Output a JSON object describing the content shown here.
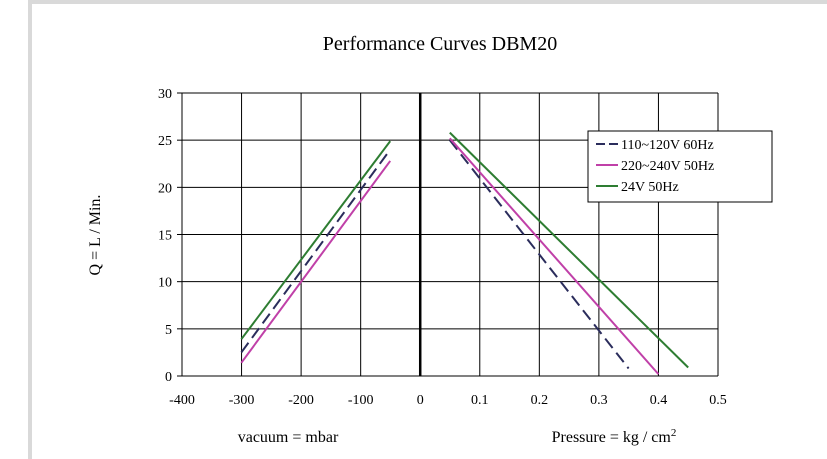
{
  "chart_data": {
    "type": "line",
    "title": "Performance  Curves  DBM20",
    "ylabel": "Q = L / Min.",
    "ylim": [
      0,
      30
    ],
    "y_ticks": [
      "0",
      "5",
      "10",
      "15",
      "20",
      "25",
      "30"
    ],
    "x_ticks": [
      "-400",
      "-300",
      "-200",
      "-100",
      "0",
      "0.1",
      "0.2",
      "0.3",
      "0.4",
      "0.5"
    ],
    "left_panel": {
      "xlabel": "vacuum = mbar",
      "xlim": [
        -400,
        0
      ]
    },
    "right_panel": {
      "xlabel_main": "Pressure = kg / cm",
      "xlabel_sup": "2",
      "xlim": [
        0,
        0.5
      ]
    },
    "grid": true,
    "legend_position": "top-right",
    "series": [
      {
        "name": "110~120V 60Hz",
        "color": "#2b2d5c",
        "dash": true,
        "vacuum": [
          [
            -300,
            2.5
          ],
          [
            -50,
            24
          ]
        ],
        "pressure": [
          [
            0.05,
            25
          ],
          [
            0.35,
            0.8
          ]
        ]
      },
      {
        "name": "220~240V 50Hz",
        "color": "#c040a8",
        "dash": false,
        "vacuum": [
          [
            -300,
            1.4
          ],
          [
            -50,
            22.8
          ]
        ],
        "pressure": [
          [
            0.05,
            25.2
          ],
          [
            0.4,
            0.2
          ]
        ]
      },
      {
        "name": "24V 50Hz",
        "color": "#2e7d32",
        "dash": false,
        "vacuum": [
          [
            -300,
            3.9
          ],
          [
            -50,
            24.9
          ]
        ],
        "pressure": [
          [
            0.05,
            25.8
          ],
          [
            0.45,
            0.9
          ]
        ]
      }
    ]
  }
}
